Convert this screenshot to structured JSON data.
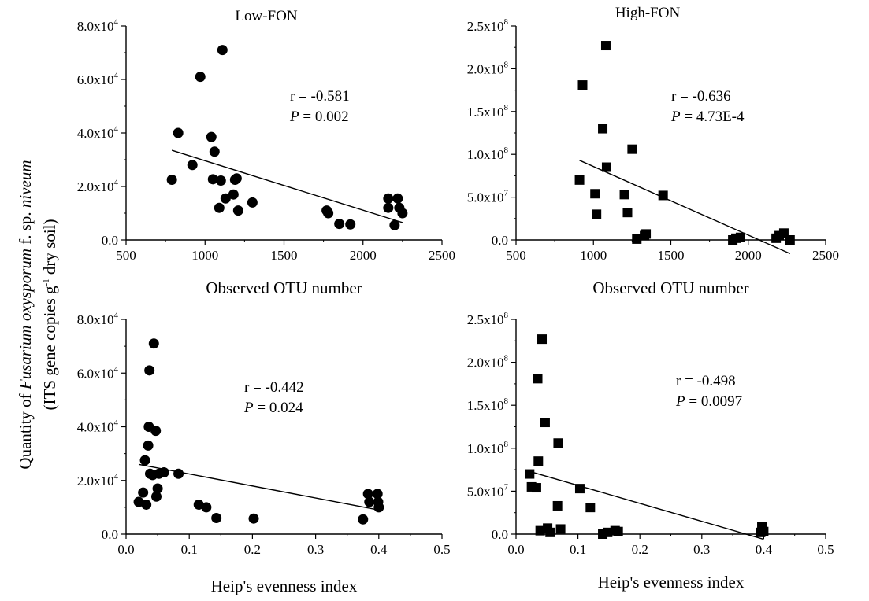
{
  "y_label": {
    "line1_pre": "Quantity of ",
    "line1_italic": "Fusarium oxysporum",
    "line1_mid": " f. sp. ",
    "line1_italic2": "niveum",
    "line2_pre": "(ITS gene copies g",
    "line2_sup": "-1",
    "line2_post": " dry soil)"
  },
  "chart_data": [
    {
      "type": "scatter",
      "title": "Low-FON",
      "xlabel": "Observed OTU number",
      "ylabel": "",
      "xlim": [
        500,
        2500
      ],
      "ylim": [
        0,
        80000
      ],
      "x_ticks": [
        {
          "v": 500,
          "label": "500"
        },
        {
          "v": 1000,
          "label": "1000"
        },
        {
          "v": 1500,
          "label": "1500"
        },
        {
          "v": 2000,
          "label": "2000"
        },
        {
          "v": 2500,
          "label": "2500"
        }
      ],
      "y_ticks": [
        {
          "v": 0,
          "label": "0.0"
        },
        {
          "v": 20000,
          "label": "2.0x10",
          "exp": "4"
        },
        {
          "v": 40000,
          "label": "4.0x10",
          "exp": "4"
        },
        {
          "v": 60000,
          "label": "6.0x10",
          "exp": "4"
        },
        {
          "v": 80000,
          "label": "8.0x10",
          "exp": "4"
        }
      ],
      "marker": "circle",
      "points": [
        [
          790,
          22500
        ],
        [
          830,
          40000
        ],
        [
          920,
          28000
        ],
        [
          970,
          61000
        ],
        [
          1040,
          38500
        ],
        [
          1050,
          22700
        ],
        [
          1060,
          33000
        ],
        [
          1090,
          12000
        ],
        [
          1100,
          22200
        ],
        [
          1110,
          71000
        ],
        [
          1130,
          15500
        ],
        [
          1180,
          17000
        ],
        [
          1190,
          22500
        ],
        [
          1200,
          23000
        ],
        [
          1210,
          11000
        ],
        [
          1300,
          14000
        ],
        [
          1770,
          11000
        ],
        [
          1780,
          10000
        ],
        [
          1850,
          6000
        ],
        [
          1920,
          5800
        ],
        [
          2160,
          15500
        ],
        [
          2160,
          12000
        ],
        [
          2200,
          5500
        ],
        [
          2220,
          15500
        ],
        [
          2230,
          12000
        ],
        [
          2250,
          10000
        ]
      ],
      "fit": {
        "x": [
          790,
          2250
        ],
        "y": [
          33500,
          6500
        ]
      },
      "annotation": {
        "r": "r = -0.581",
        "p_label": "P",
        "p_value": " = 0.002"
      }
    },
    {
      "type": "scatter",
      "title": "High-FON",
      "xlabel": "Observed OTU number",
      "ylabel": "",
      "xlim": [
        500,
        2500
      ],
      "ylim": [
        0,
        250000000
      ],
      "x_ticks": [
        {
          "v": 500,
          "label": "500"
        },
        {
          "v": 1000,
          "label": "1000"
        },
        {
          "v": 1500,
          "label": "1500"
        },
        {
          "v": 2000,
          "label": "2000"
        },
        {
          "v": 2500,
          "label": "2500"
        }
      ],
      "y_ticks": [
        {
          "v": 0,
          "label": "0.0"
        },
        {
          "v": 50000000,
          "label": "5.0x10",
          "exp": "7"
        },
        {
          "v": 100000000,
          "label": "1.0x10",
          "exp": "8"
        },
        {
          "v": 150000000,
          "label": "1.5x10",
          "exp": "8"
        },
        {
          "v": 200000000,
          "label": "2.0x10",
          "exp": "8"
        },
        {
          "v": 250000000,
          "label": "2.5x10",
          "exp": "8"
        }
      ],
      "marker": "square",
      "points": [
        [
          910,
          70000000
        ],
        [
          930,
          181000000
        ],
        [
          1010,
          54000000
        ],
        [
          1020,
          30000000
        ],
        [
          1060,
          130000000
        ],
        [
          1080,
          227000000
        ],
        [
          1085,
          85000000
        ],
        [
          1200,
          53000000
        ],
        [
          1220,
          32000000
        ],
        [
          1250,
          106000000
        ],
        [
          1280,
          1000000
        ],
        [
          1330,
          5000000
        ],
        [
          1340,
          7000000
        ],
        [
          1450,
          52000000
        ],
        [
          1900,
          0
        ],
        [
          1920,
          2000000
        ],
        [
          1950,
          3000000
        ],
        [
          2180,
          2000000
        ],
        [
          2200,
          5000000
        ],
        [
          2230,
          8000000
        ],
        [
          2270,
          0
        ]
      ],
      "fit": {
        "x": [
          910,
          2270
        ],
        "y": [
          93000000,
          -16000000
        ]
      },
      "annotation": {
        "r": "r = -0.636",
        "p_label": "P",
        "p_value": " = 4.73E-4"
      }
    },
    {
      "type": "scatter",
      "title": "",
      "xlabel": "Heip's evenness index",
      "ylabel": "",
      "xlim": [
        0.0,
        0.5
      ],
      "ylim": [
        0,
        80000
      ],
      "x_ticks": [
        {
          "v": 0.0,
          "label": "0.0"
        },
        {
          "v": 0.1,
          "label": "0.1"
        },
        {
          "v": 0.2,
          "label": "0.2"
        },
        {
          "v": 0.3,
          "label": "0.3"
        },
        {
          "v": 0.4,
          "label": "0.4"
        },
        {
          "v": 0.5,
          "label": "0.5"
        }
      ],
      "y_ticks": [
        {
          "v": 0,
          "label": "0.0"
        },
        {
          "v": 20000,
          "label": "2.0x10",
          "exp": "4"
        },
        {
          "v": 40000,
          "label": "4.0x10",
          "exp": "4"
        },
        {
          "v": 60000,
          "label": "6.0x10",
          "exp": "4"
        },
        {
          "v": 80000,
          "label": "8.0x10",
          "exp": "4"
        }
      ],
      "marker": "circle",
      "points": [
        [
          0.02,
          12000
        ],
        [
          0.027,
          15500
        ],
        [
          0.03,
          27500
        ],
        [
          0.032,
          11000
        ],
        [
          0.035,
          33000
        ],
        [
          0.036,
          40000
        ],
        [
          0.037,
          61000
        ],
        [
          0.038,
          22500
        ],
        [
          0.042,
          22000
        ],
        [
          0.044,
          71000
        ],
        [
          0.047,
          38500
        ],
        [
          0.048,
          14000
        ],
        [
          0.05,
          17000
        ],
        [
          0.052,
          22500
        ],
        [
          0.06,
          23000
        ],
        [
          0.083,
          22500
        ],
        [
          0.115,
          11000
        ],
        [
          0.127,
          10000
        ],
        [
          0.143,
          6000
        ],
        [
          0.202,
          5800
        ],
        [
          0.375,
          5500
        ],
        [
          0.383,
          15000
        ],
        [
          0.385,
          12000
        ],
        [
          0.398,
          15000
        ],
        [
          0.399,
          12000
        ],
        [
          0.4,
          10000
        ]
      ],
      "fit": {
        "x": [
          0.02,
          0.4
        ],
        "y": [
          26000,
          9000
        ]
      },
      "annotation": {
        "r": "r = -0.442",
        "p_label": "P",
        "p_value": " = 0.024"
      }
    },
    {
      "type": "scatter",
      "title": "",
      "xlabel": "Heip's evenness index",
      "ylabel": "",
      "xlim": [
        0.0,
        0.5
      ],
      "ylim": [
        0,
        250000000
      ],
      "x_ticks": [
        {
          "v": 0.0,
          "label": "0.0"
        },
        {
          "v": 0.1,
          "label": "0.1"
        },
        {
          "v": 0.2,
          "label": "0.2"
        },
        {
          "v": 0.3,
          "label": "0.3"
        },
        {
          "v": 0.4,
          "label": "0.4"
        },
        {
          "v": 0.5,
          "label": "0.5"
        }
      ],
      "y_ticks": [
        {
          "v": 0,
          "label": "0.0"
        },
        {
          "v": 50000000,
          "label": "5.0x10",
          "exp": "7"
        },
        {
          "v": 100000000,
          "label": "1.0x10",
          "exp": "8"
        },
        {
          "v": 150000000,
          "label": "1.5x10",
          "exp": "8"
        },
        {
          "v": 200000000,
          "label": "2.0x10",
          "exp": "8"
        },
        {
          "v": 250000000,
          "label": "2.5x10",
          "exp": "8"
        }
      ],
      "marker": "square",
      "points": [
        [
          0.022,
          70000000
        ],
        [
          0.025,
          55000000
        ],
        [
          0.033,
          54000000
        ],
        [
          0.035,
          181000000
        ],
        [
          0.036,
          85000000
        ],
        [
          0.039,
          4000000
        ],
        [
          0.042,
          227000000
        ],
        [
          0.047,
          130000000
        ],
        [
          0.051,
          7000000
        ],
        [
          0.055,
          2000000
        ],
        [
          0.067,
          33000000
        ],
        [
          0.068,
          106000000
        ],
        [
          0.072,
          6000000
        ],
        [
          0.103,
          53000000
        ],
        [
          0.12,
          31000000
        ],
        [
          0.14,
          0
        ],
        [
          0.148,
          2000000
        ],
        [
          0.16,
          4000000
        ],
        [
          0.165,
          3000000
        ],
        [
          0.395,
          2000000
        ],
        [
          0.397,
          9000000
        ],
        [
          0.398,
          4000000
        ],
        [
          0.4,
          3000000
        ]
      ],
      "fit": {
        "x": [
          0.022,
          0.4
        ],
        "y": [
          73000000,
          -6000000
        ]
      },
      "annotation": {
        "r": "r = -0.498",
        "p_label": "P",
        "p_value": " = 0.0097"
      }
    }
  ]
}
